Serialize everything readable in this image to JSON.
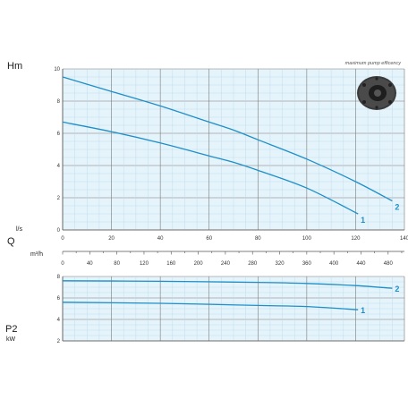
{
  "chart_data": [
    {
      "type": "line",
      "title": "",
      "ylabel": "Hm",
      "annotation": "maximum pump efficency",
      "ylim": [
        0,
        10
      ],
      "yticks": [
        "0",
        "2",
        "4",
        "6",
        "8",
        "10"
      ],
      "x_axes": [
        {
          "unit_top": "l/s",
          "symbol": "Q",
          "unit": "",
          "lim": [
            0,
            140
          ],
          "ticks": [
            "0",
            "20",
            "40",
            "60",
            "80",
            "100",
            "120",
            "140"
          ]
        },
        {
          "unit": "m³/h",
          "lim": [
            0,
            504
          ],
          "ticks": [
            "0",
            "40",
            "80",
            "120",
            "160",
            "200",
            "240",
            "280",
            "320",
            "360",
            "400",
            "440",
            "480"
          ]
        }
      ],
      "series": [
        {
          "name": "1",
          "color": "#1e8fc8",
          "x": [
            0,
            20,
            40,
            60,
            70,
            80,
            100,
            121
          ],
          "y": [
            6.7,
            6.1,
            5.4,
            4.6,
            4.2,
            3.7,
            2.6,
            1.0
          ]
        },
        {
          "name": "2",
          "color": "#1e8fc8",
          "x": [
            0,
            20,
            40,
            60,
            70,
            80,
            100,
            120,
            135
          ],
          "y": [
            9.5,
            8.6,
            7.7,
            6.7,
            6.2,
            5.6,
            4.4,
            3.0,
            1.8
          ]
        }
      ]
    },
    {
      "type": "line",
      "title": "",
      "ylabel": "P2",
      "yunit": "kW",
      "ylim": [
        2,
        8
      ],
      "yticks": [
        "2",
        "4",
        "6",
        "8"
      ],
      "series": [
        {
          "name": "2",
          "color": "#1e8fc8",
          "x": [
            0,
            40,
            80,
            100,
            120,
            135
          ],
          "y": [
            7.6,
            7.55,
            7.45,
            7.35,
            7.15,
            6.9
          ]
        },
        {
          "name": "1",
          "color": "#1e8fc8",
          "x": [
            0,
            40,
            80,
            100,
            121
          ],
          "y": [
            5.6,
            5.5,
            5.3,
            5.2,
            4.9
          ]
        }
      ]
    }
  ],
  "icons": {
    "pump_image": "pump-impeller-icon"
  }
}
